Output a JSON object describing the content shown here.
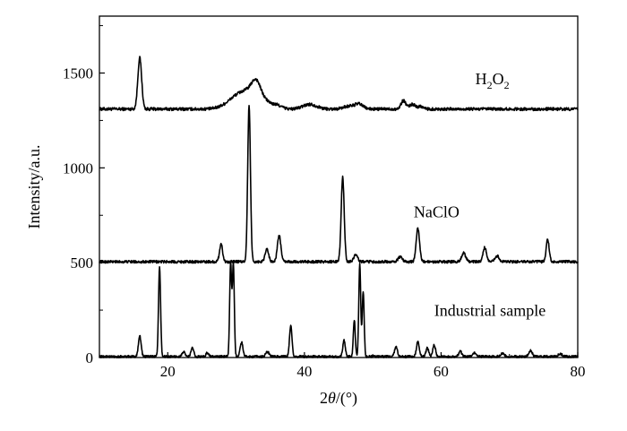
{
  "chart_data": {
    "type": "line",
    "xlabel_prefix": "2",
    "xlabel_symbol": "θ",
    "xlabel_suffix": "/(°)",
    "ylabel": "Intensity/a.u.",
    "xlim": [
      10,
      80
    ],
    "ylim": [
      0,
      1800
    ],
    "xticks": [
      20,
      40,
      60,
      80
    ],
    "yticks": [
      0,
      500,
      1000,
      1500
    ],
    "grid": false,
    "legend": "none",
    "series": [
      {
        "name": "H2O2",
        "label_parts": [
          "H",
          "2",
          "O",
          "2"
        ],
        "baseline": 1310,
        "label_at": [
          65,
          1440
        ],
        "peaks": [
          [
            15.9,
            270,
            0.28
          ],
          [
            29.8,
            40,
            1.5
          ],
          [
            31.0,
            50,
            1.2
          ],
          [
            32.5,
            65,
            0.9
          ],
          [
            33.0,
            70,
            0.6
          ],
          [
            34.2,
            40,
            0.8
          ],
          [
            36.0,
            20,
            0.7
          ],
          [
            40.8,
            25,
            1.0
          ],
          [
            46.5,
            15,
            0.8
          ],
          [
            48.0,
            25,
            0.6
          ],
          [
            54.5,
            45,
            0.35
          ],
          [
            55.8,
            25,
            0.4
          ],
          [
            57.0,
            15,
            0.4
          ]
        ],
        "noise": 8
      },
      {
        "name": "NaClO",
        "baseline": 505,
        "label_at": [
          56,
          740
        ],
        "peaks": [
          [
            27.8,
            95,
            0.22
          ],
          [
            31.9,
            820,
            0.2
          ],
          [
            34.5,
            70,
            0.25
          ],
          [
            36.3,
            140,
            0.25
          ],
          [
            45.6,
            445,
            0.22
          ],
          [
            47.5,
            35,
            0.3
          ],
          [
            54.0,
            25,
            0.3
          ],
          [
            56.6,
            175,
            0.25
          ],
          [
            63.3,
            45,
            0.3
          ],
          [
            66.4,
            75,
            0.25
          ],
          [
            68.2,
            30,
            0.3
          ],
          [
            75.6,
            115,
            0.22
          ]
        ],
        "noise": 7
      },
      {
        "name": "Industrial sample",
        "baseline": 5,
        "label_at": [
          59,
          220
        ],
        "peaks": [
          [
            15.9,
            110,
            0.2
          ],
          [
            18.8,
            470,
            0.15
          ],
          [
            22.3,
            25,
            0.2
          ],
          [
            23.6,
            45,
            0.2
          ],
          [
            25.8,
            20,
            0.2
          ],
          [
            29.2,
            490,
            0.14
          ],
          [
            29.6,
            490,
            0.14
          ],
          [
            30.8,
            75,
            0.2
          ],
          [
            34.6,
            25,
            0.25
          ],
          [
            38.0,
            160,
            0.18
          ],
          [
            45.8,
            85,
            0.18
          ],
          [
            47.3,
            195,
            0.14
          ],
          [
            48.1,
            490,
            0.14
          ],
          [
            48.6,
            345,
            0.14
          ],
          [
            53.4,
            55,
            0.2
          ],
          [
            56.6,
            80,
            0.2
          ],
          [
            58.0,
            45,
            0.2
          ],
          [
            59.0,
            60,
            0.2
          ],
          [
            62.8,
            30,
            0.2
          ],
          [
            64.8,
            20,
            0.25
          ],
          [
            69.0,
            15,
            0.3
          ],
          [
            73.1,
            30,
            0.25
          ],
          [
            77.4,
            15,
            0.3
          ]
        ],
        "noise": 6
      }
    ]
  }
}
